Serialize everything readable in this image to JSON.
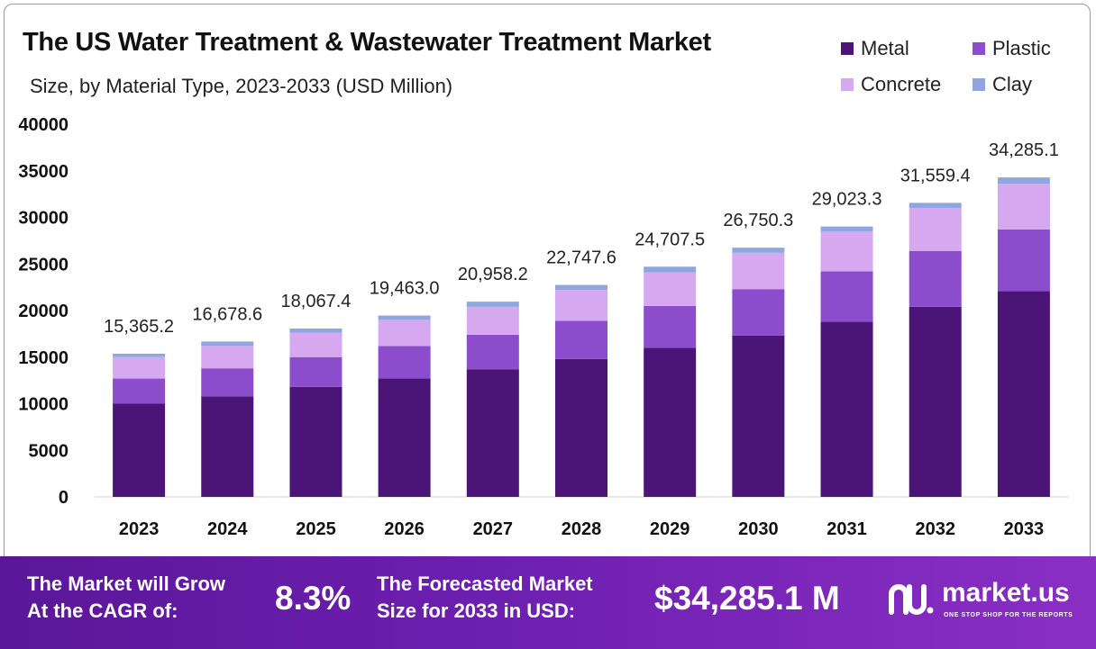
{
  "title": "The US Water Treatment & Wastewater Treatment Market",
  "subtitle": "Size, by Material Type, 2023-2033 (USD Million)",
  "legend": [
    {
      "name": "Metal",
      "color": "#4b1577"
    },
    {
      "name": "Plastic",
      "color": "#8b4dcc"
    },
    {
      "name": "Concrete",
      "color": "#d5a8ef"
    },
    {
      "name": "Clay",
      "color": "#8fa7df"
    }
  ],
  "chart_data": {
    "type": "bar",
    "stacked": true,
    "categories": [
      "2023",
      "2024",
      "2025",
      "2026",
      "2027",
      "2028",
      "2029",
      "2030",
      "2031",
      "2032",
      "2033"
    ],
    "series": [
      {
        "name": "Metal",
        "color": "#4b1577",
        "values": [
          10000,
          10800,
          11800,
          12700,
          13700,
          14800,
          16000,
          17300,
          18800,
          20400,
          22100
        ]
      },
      {
        "name": "Plastic",
        "color": "#8b4dcc",
        "values": [
          2700,
          3000,
          3200,
          3500,
          3700,
          4100,
          4500,
          5000,
          5400,
          6000,
          6600
        ]
      },
      {
        "name": "Concrete",
        "color": "#d5a8ef",
        "values": [
          2300,
          2400,
          2600,
          2800,
          3000,
          3300,
          3600,
          3900,
          4300,
          4600,
          4900
        ]
      },
      {
        "name": "Clay",
        "color": "#8fa7df",
        "values": [
          365.2,
          478.6,
          467.4,
          463.0,
          558.2,
          547.6,
          607.5,
          550.3,
          523.3,
          559.4,
          685.1
        ]
      }
    ],
    "totals": [
      "15,365.2",
      "16,678.6",
      "18,067.4",
      "19,463.0",
      "20,958.2",
      "22,747.6",
      "24,707.5",
      "26,750.3",
      "29,023.3",
      "31,559.4",
      "34,285.1"
    ],
    "y_ticks": [
      "0",
      "5000",
      "10000",
      "15000",
      "20000",
      "25000",
      "30000",
      "35000",
      "40000"
    ],
    "ylim": [
      0,
      40000
    ],
    "grid": false,
    "legend_position": "top-right"
  },
  "footer": {
    "cagr_label_line1": "The Market will Grow",
    "cagr_label_line2": "At the CAGR of:",
    "cagr_value": "8.3%",
    "forecast_label_line1": "The Forecasted Market",
    "forecast_label_line2": "Size for 2033 in USD:",
    "forecast_value": "$34,285.1 M",
    "brand_name": "market.us",
    "brand_tagline": "ONE STOP SHOP FOR THE REPORTS"
  }
}
